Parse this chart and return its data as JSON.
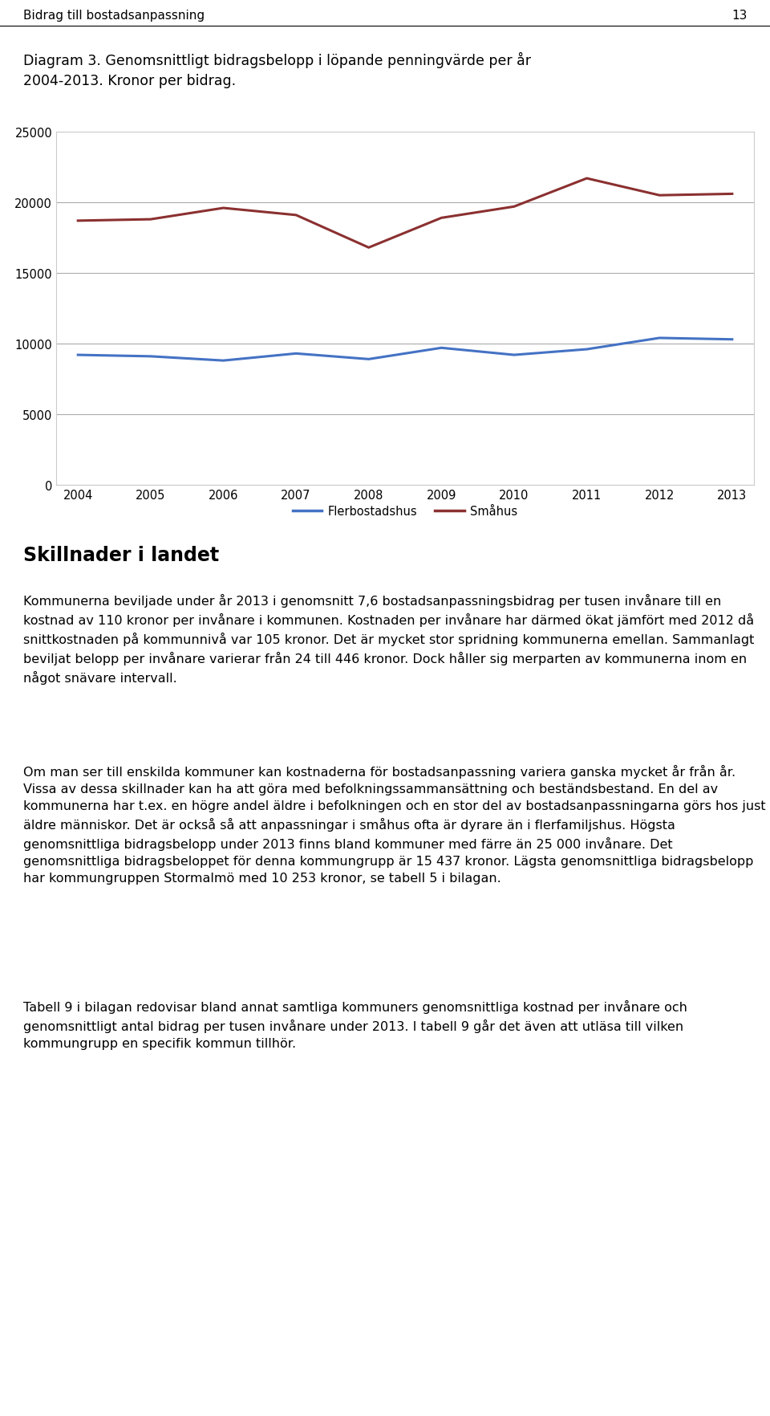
{
  "years": [
    2004,
    2005,
    2006,
    2007,
    2008,
    2009,
    2010,
    2011,
    2012,
    2013
  ],
  "flerbostadshus": [
    9200,
    9100,
    8800,
    9300,
    8900,
    9700,
    9200,
    9600,
    10400,
    10300
  ],
  "smahus": [
    18700,
    18800,
    19600,
    19100,
    16800,
    18900,
    19700,
    21700,
    20500,
    20600
  ],
  "flerbostadshus_color": "#4472C4",
  "smahus_color": "#8B3030",
  "legend_flerbostadshus": "Flerbostadshus",
  "legend_smahus": "Småhus",
  "ylim": [
    0,
    25000
  ],
  "yticks": [
    0,
    5000,
    10000,
    15000,
    20000,
    25000
  ],
  "line_width": 2.2,
  "header_text": "Bidrag till bostadsanpassning",
  "page_number": "13",
  "diagram_title": "Diagram 3. Genomsnittligt bidragsbelopp i löpande penningvärde per år\n2004-2013. Kronor per bidrag.",
  "section_title": "Skillnader i landet",
  "body_text1": "Kommunerna beviljade under år 2013 i genomsnitt 7,6 bostadsanpassningsbidrag per tusen invånare till en kostnad av 110 kronor per invånare i kommunen. Kostnaden per invånare har därmed ökat jämfört med 2012 då snittkostnaden på kommunnivå var 105 kronor. Det är mycket stor spridning kommunerna emellan. Sammanlagt beviljat belopp per invånare varierar från 24 till 446 kronor. Dock håller sig merparten av kommunerna inom en något snävare intervall.",
  "body_text2": "Om man ser till enskilda kommuner kan kostnaderna för bostadsanpassning variera ganska mycket år från år. Vissa av dessa skillnader kan ha att göra med befolkningssammansättning och beständsbestand. En del av kommunerna har t.ex. en högre andel äldre i befolkningen och en stor del av bostadsanpassningarna görs hos just äldre människor. Det är också så att anpassningar i småhus ofta är dyrare än i flerfamiljshus. Högsta genomsnittliga bidragsbelopp under 2013 finns bland kommuner med färre än 25 000 invånare. Det genomsnittliga bidragsbeloppet för denna kommungrupp är 15 437 kronor. Lägsta genomsnittliga bidragsbelopp har kommungruppen Stormalmö med 10 253 kronor, se tabell 5 i bilagan.",
  "body_text3": "Tabell 9 i bilagan redovisar bland annat samtliga kommuners genomsnittliga kostnad per invånare och genomsnittligt antal bidrag per tusen invånare under 2013. I tabell 9 går det även att utläsa till vilken kommungrupp en specifik kommun tillhör.",
  "bg_color": "#FFFFFF",
  "chart_bg_color": "#FFFFFF",
  "grid_color": "#AAAAAA",
  "border_color": "#CCCCCC",
  "tick_fontsize": 10.5,
  "legend_fontsize": 10.5,
  "body_fontsize": 11.5,
  "title_fontsize": 12.5,
  "header_fontsize": 11,
  "section_fontsize": 17
}
